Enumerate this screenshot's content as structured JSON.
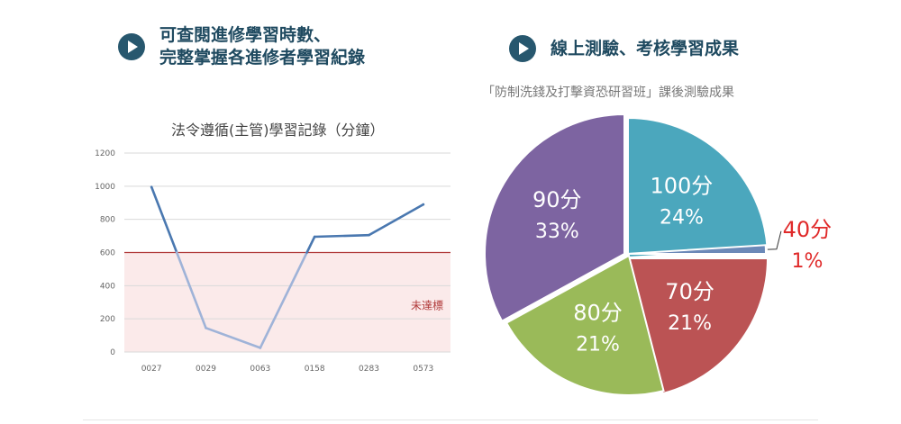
{
  "left_header": {
    "line1": "可查閱進修學習時數、",
    "line2": "完整掌握各進修者學習紀錄"
  },
  "right_header": {
    "title": "線上測驗、考核學習成果"
  },
  "chart_data": [
    {
      "type": "line",
      "title": "法令遵循(主管)學習記錄（分鐘）",
      "categories": [
        "0027",
        "0029",
        "0063",
        "0158",
        "0283",
        "0573"
      ],
      "series": [
        {
          "values": [
            995,
            145,
            25,
            695,
            705,
            890
          ]
        }
      ],
      "ylim": [
        0,
        1200
      ],
      "yticks": [
        0,
        200,
        400,
        600,
        800,
        1000,
        1200
      ],
      "threshold": {
        "value": 600,
        "label": "未達標",
        "color": "#b03a3a"
      },
      "colors": {
        "line": "#4a78b0",
        "line_below": "#9fb3d8",
        "band": "#fbeaea",
        "grid": "#d9d9d9"
      },
      "grid": true
    },
    {
      "type": "pie",
      "subtitle": "「防制洗錢及打擊資恐研習班」課後測驗成果",
      "slices": [
        {
          "label": "100分",
          "percent_label": "24%",
          "value": 24,
          "color": "#4ba7bd",
          "text_color": "#ffffff"
        },
        {
          "label": "40分",
          "percent_label": "1%",
          "value": 1,
          "color": "#6b89b8",
          "text_color": "#e02a2a"
        },
        {
          "label": "70分",
          "percent_label": "21%",
          "value": 21,
          "color": "#bb5354",
          "text_color": "#ffffff"
        },
        {
          "label": "80分",
          "percent_label": "21%",
          "value": 21,
          "color": "#9aba59",
          "text_color": "#ffffff"
        },
        {
          "label": "90分",
          "percent_label": "33%",
          "value": 33,
          "color": "#7d64a1",
          "text_color": "#ffffff"
        }
      ]
    }
  ]
}
